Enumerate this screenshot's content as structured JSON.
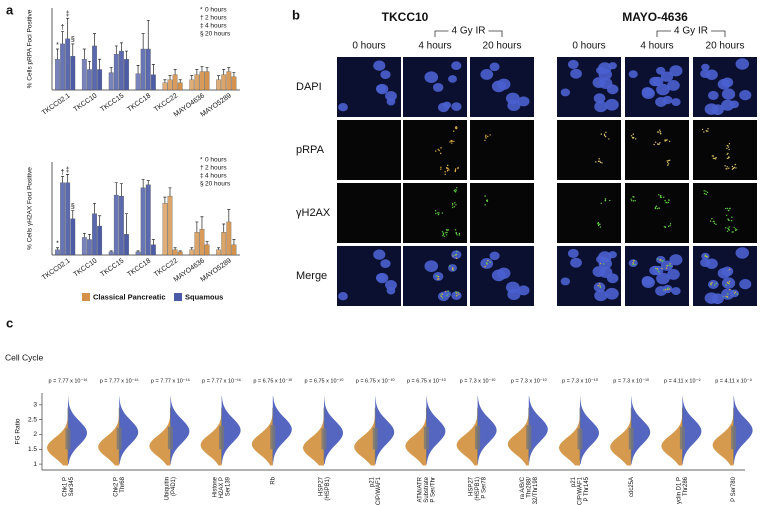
{
  "panel_labels": [
    "a",
    "b",
    "c"
  ],
  "chart_data": [
    {
      "type": "bar",
      "y_label": "% Cells pRPA Foci Positive",
      "categories": [
        "TKCC02.1",
        "TKCC10",
        "TKCC15",
        "TKCC18",
        "TKCC22",
        "MAYO4636",
        "MAYO5289"
      ],
      "groups": [
        {
          "name": "Classical Pancreatic",
          "color": "#d4914a"
        },
        {
          "name": "Squamous",
          "color": "#4b5aa6"
        }
      ],
      "category_group": [
        1,
        1,
        1,
        1,
        0,
        0,
        0
      ],
      "ylim": [
        0,
        80
      ],
      "series": [
        {
          "name": "0 hours",
          "symbol": "*",
          "values": [
            30,
            30,
            17,
            16,
            7,
            10,
            10
          ],
          "errors": [
            10,
            10,
            5,
            8,
            3,
            4,
            4
          ]
        },
        {
          "name": "2 hours",
          "symbol": "†",
          "values": [
            45,
            20,
            35,
            40,
            10,
            15,
            15
          ],
          "errors": [
            12,
            8,
            8,
            15,
            4,
            5,
            5
          ]
        },
        {
          "name": "4 hours",
          "symbol": "‡",
          "values": [
            50,
            43,
            38,
            40,
            15,
            18,
            18
          ],
          "errors": [
            20,
            12,
            8,
            28,
            5,
            5,
            4
          ]
        },
        {
          "name": "20 hours",
          "symbol": "§",
          "values": [
            33,
            20,
            30,
            15,
            7,
            18,
            13
          ],
          "errors": [
            12,
            10,
            8,
            10,
            3,
            4,
            4
          ]
        }
      ]
    },
    {
      "type": "bar",
      "y_label": "% Cells γH2AX Foci Positive",
      "categories": [
        "TKCC02.1",
        "TKCC10",
        "TKCC15",
        "TKCC18",
        "TKCC22",
        "MAYO4636",
        "MAYO5289"
      ],
      "groups": [
        {
          "name": "Classical Pancreatic",
          "color": "#d4914a"
        },
        {
          "name": "Squamous",
          "color": "#4b5aa6"
        }
      ],
      "category_group": [
        1,
        1,
        1,
        1,
        0,
        0,
        0
      ],
      "ylim": [
        0,
        90
      ],
      "legend": true,
      "series": [
        {
          "name": "0 hours",
          "symbol": "*",
          "values": [
            5,
            17,
            3,
            3,
            50,
            5,
            5
          ],
          "errors": [
            2,
            4,
            1,
            1,
            6,
            2,
            2
          ]
        },
        {
          "name": "2 hours",
          "symbol": "†",
          "values": [
            70,
            15,
            58,
            65,
            57,
            22,
            22
          ],
          "errors": [
            6,
            5,
            12,
            8,
            8,
            10,
            8
          ]
        },
        {
          "name": "4 hours",
          "symbol": "‡",
          "values": [
            70,
            40,
            57,
            68,
            5,
            25,
            32
          ],
          "errors": [
            8,
            10,
            12,
            4,
            2,
            12,
            12
          ]
        },
        {
          "name": "20 hours",
          "symbol": "§",
          "values": [
            35,
            28,
            20,
            10,
            3,
            10,
            10
          ],
          "errors": [
            8,
            10,
            20,
            5,
            1,
            3,
            5
          ]
        }
      ]
    },
    {
      "type": "violin",
      "title": "Cell Cycle",
      "y_label": "FG Ratio",
      "ylim": [
        0.8,
        3.4
      ],
      "yticks": [
        1,
        1.5,
        2,
        2.5,
        3
      ],
      "colors": [
        "#d59a4e",
        "#5566c0"
      ],
      "categories": [
        [
          "Chk1 P",
          "Ser345"
        ],
        [
          "Chk2 P",
          "Thr68"
        ],
        [
          "Ubiquitin",
          "(P4D1)"
        ],
        [
          "Histone",
          "H2AX P",
          "Ser139"
        ],
        [
          "Rb"
        ],
        [
          "HSP27",
          "(HSPB1)"
        ],
        [
          "p21",
          "CIP/WAF1"
        ],
        [
          "ATM/ATR",
          "Substrate",
          "P Ser/Thr"
        ],
        [
          "HSP27",
          "(HSPB1)",
          "P Ser78"
        ],
        [
          "ra A/B/C",
          "Thr288/",
          "32/Thr198"
        ],
        [
          "p21",
          "CIP/WAF1",
          "P Thr145"
        ],
        [
          "cdc25A"
        ],
        [
          "yclin D1 P",
          "Thr286"
        ],
        [
          "P Ser780"
        ]
      ],
      "p_values": [
        "p = 7.77 x 10⁻¹⁶",
        "p = 7.77 x 10⁻¹⁶",
        "p = 7.77 x 10⁻¹⁶",
        "p = 7.77 x 10⁻¹⁶",
        "p = 6.75 x 10⁻¹⁰",
        "p = 6.75 x 10⁻¹⁰",
        "p = 6.75 x 10⁻¹⁰",
        "p = 6.75 x 10⁻¹⁰",
        "p = 7.3 x 10⁻¹⁰",
        "p = 7.3 x 10⁻¹⁰",
        "p = 7.3 x 10⁻¹⁰",
        "p = 7.3 x 10⁻¹⁰",
        "p = 4.11 x 10⁻⁹",
        "p = 4.11 x 10⁻⁹"
      ]
    }
  ],
  "microscopy": {
    "lines": [
      "TKCC10",
      "MAYO-4636"
    ],
    "treatment": "4 Gy IR",
    "timepoints": [
      "0 hours",
      "4 hours",
      "20 hours"
    ],
    "stains": [
      "DAPI",
      "pRPA",
      "γH2AX",
      "Merge"
    ]
  }
}
